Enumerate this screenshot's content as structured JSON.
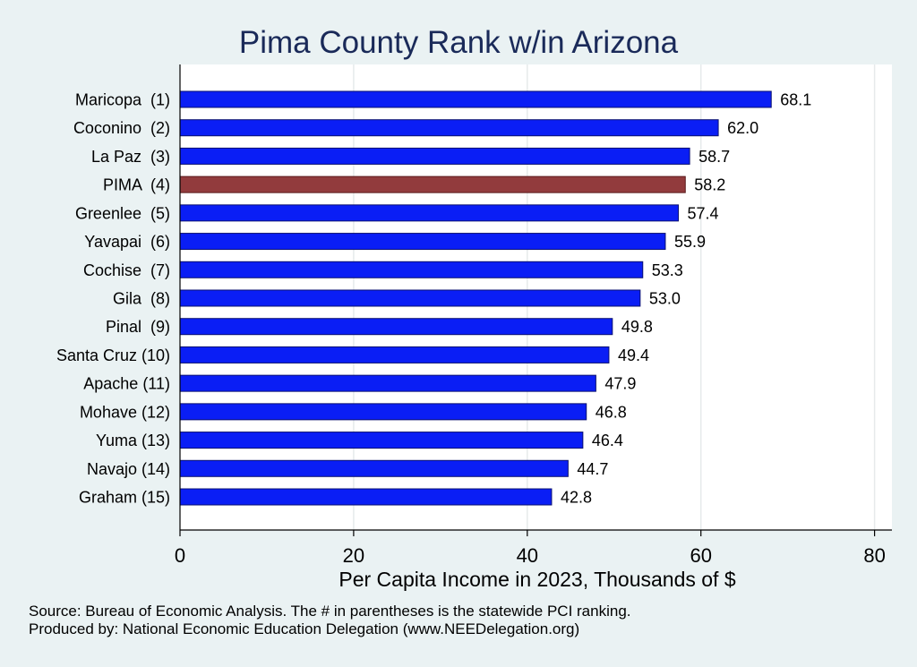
{
  "chart_data": {
    "type": "bar",
    "orientation": "horizontal",
    "title": "Pima County Rank w/in Arizona",
    "xlabel": "Per Capita Income in 2023, Thousands of $",
    "ylabel": "",
    "xlim": [
      0,
      82
    ],
    "xticks": [
      "0",
      "20",
      "40",
      "60",
      "80"
    ],
    "xtick_values": [
      0,
      20,
      40,
      60,
      80
    ],
    "grid": true,
    "categories": [
      "Maricopa  (1)",
      "Coconino  (2)",
      "La Paz  (3)",
      "PIMA  (4)",
      "Greenlee  (5)",
      "Yavapai  (6)",
      "Cochise  (7)",
      "Gila  (8)",
      "Pinal  (9)",
      "Santa Cruz (10)",
      "Apache (11)",
      "Mohave (12)",
      "Yuma (13)",
      "Navajo (14)",
      "Graham (15)"
    ],
    "values": [
      68.1,
      62.0,
      58.7,
      58.2,
      57.4,
      55.9,
      53.3,
      53.0,
      49.8,
      49.4,
      47.9,
      46.8,
      46.4,
      44.7,
      42.8
    ],
    "value_labels": [
      "68.1",
      "62.0",
      "58.7",
      "58.2",
      "57.4",
      "55.9",
      "53.3",
      "53.0",
      "49.8",
      "49.4",
      "47.9",
      "46.8",
      "46.4",
      "44.7",
      "42.8"
    ],
    "highlight_index": 3,
    "colors": {
      "bar": "#0a1ef5",
      "highlight": "#923b3d",
      "bar_edge": "#0b1170",
      "highlight_edge": "#5a1a1c",
      "grid": "#e6eaeb",
      "plot_bg": "#ffffff",
      "page_bg": "#eaf2f3",
      "title": "#1a2a59"
    }
  },
  "notes": [
    "Source: Bureau of Economic Analysis. The # in parentheses is the statewide PCI ranking.",
    "Produced by: National Economic Education Delegation (www.NEEDelegation.org)"
  ]
}
